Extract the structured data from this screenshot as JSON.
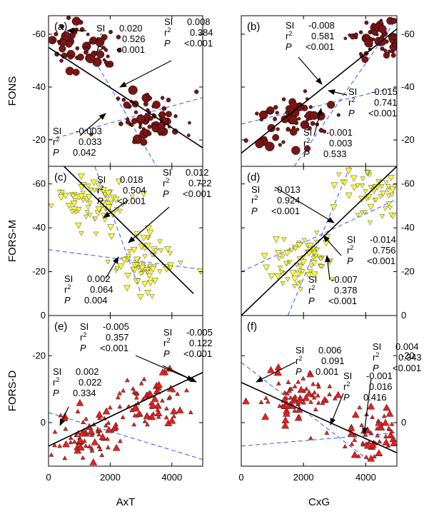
{
  "chart_data": {
    "type": "scatter",
    "layout": "3x2 panel grid",
    "x_axis_labels": [
      "AxT",
      "CxG"
    ],
    "row_labels": [
      "FONS",
      "FORS-M",
      "FORS-D"
    ],
    "xlim": [
      0,
      5000
    ],
    "x_ticks": [
      0,
      2000,
      4000
    ],
    "panels": [
      {
        "letter": "(a)",
        "col": 0,
        "row": 0,
        "ylim": [
          -10,
          -67
        ],
        "y_ticks": [
          -20,
          -40,
          -60
        ],
        "y_tick_side": "left",
        "marker": "circle",
        "color": "#7a1515",
        "cluster_centers": [
          [
            1100,
            -56
          ],
          [
            3300,
            -28
          ]
        ],
        "solid_line": {
          "x": [
            0,
            5000
          ],
          "y": [
            -55,
            -17
          ]
        },
        "dashed_lines": [
          {
            "x": [
              0,
              5000
            ],
            "y": [
              -20,
              -36
            ]
          },
          {
            "x": [
              1500,
              3500
            ],
            "y": [
              -50,
              -10
            ]
          }
        ],
        "stats": [
          {
            "si": "0.020",
            "r2": "0.526",
            "p": "<0.001"
          },
          {
            "si": "0.008",
            "r2": "0.384",
            "p": "<0.001"
          },
          {
            "si": "-0.003",
            "r2": "0.033",
            "p": "0.042"
          }
        ]
      },
      {
        "letter": "(b)",
        "col": 1,
        "row": 0,
        "ylim": [
          -10,
          -67
        ],
        "y_ticks": [
          -20,
          -40,
          -60
        ],
        "y_tick_side": "right",
        "marker": "circle",
        "color": "#7a1515",
        "cluster_centers": [
          [
            1600,
            -28
          ],
          [
            4500,
            -58
          ]
        ],
        "solid_line": {
          "x": [
            0,
            5000
          ],
          "y": [
            -15,
            -62
          ]
        },
        "dashed_lines": [
          {
            "x": [
              0,
              5000
            ],
            "y": [
              -26,
              -40
            ]
          },
          {
            "x": [
              1700,
              5000
            ],
            "y": [
              -10,
              -66
            ]
          }
        ],
        "stats": [
          {
            "si": "-0.008",
            "r2": "0.581",
            "p": "<0.001"
          },
          {
            "si": "-0.015",
            "r2": "0.741",
            "p": "<0.001"
          },
          {
            "si": "-0.001",
            "r2": "0.003",
            "p": "0.533"
          }
        ]
      },
      {
        "letter": "(c)",
        "col": 0,
        "row": 1,
        "ylim": [
          0,
          -68
        ],
        "y_ticks": [
          0,
          -20,
          -40,
          -60
        ],
        "y_tick_side": "left",
        "marker": "triangle-down",
        "color": "#ffff33",
        "cluster_centers": [
          [
            1400,
            -52
          ],
          [
            3200,
            -25
          ]
        ],
        "solid_line": {
          "x": [
            500,
            4700
          ],
          "y": [
            -68,
            -10
          ]
        },
        "dashed_lines": [
          {
            "x": [
              0,
              5000
            ],
            "y": [
              -30,
              -21
            ]
          },
          {
            "x": [
              1500,
              3000
            ],
            "y": [
              -68,
              -10
            ]
          }
        ],
        "stats": [
          {
            "si": "0.018",
            "r2": "0.504",
            "p": "<0.001"
          },
          {
            "si": "0.012",
            "r2": "0.722",
            "p": "<0.001"
          },
          {
            "si": "0.002",
            "r2": "0.064",
            "p": "0.004"
          }
        ]
      },
      {
        "letter": "(d)",
        "col": 1,
        "row": 1,
        "ylim": [
          0,
          -68
        ],
        "y_ticks": [
          0,
          -20,
          -40,
          -60
        ],
        "y_tick_side": "right",
        "marker": "triangle-down",
        "color": "#ffff33",
        "cluster_centers": [
          [
            1900,
            -25
          ],
          [
            4500,
            -57
          ]
        ],
        "solid_line": {
          "x": [
            0,
            5000
          ],
          "y": [
            0,
            -68
          ]
        },
        "dashed_lines": [
          {
            "x": [
              0,
              5000
            ],
            "y": [
              -20,
              -53
            ]
          },
          {
            "x": [
              1500,
              3500
            ],
            "y": [
              0,
              -68
            ]
          }
        ],
        "stats": [
          {
            "si": "-0.013",
            "r2": "0.924",
            "p": "<0.001"
          },
          {
            "si": "-0.014",
            "r2": "0.756",
            "p": "<0.001"
          },
          {
            "si": "-0.007",
            "r2": "0.378",
            "p": "<0.001"
          }
        ]
      },
      {
        "letter": "(e)",
        "col": 0,
        "row": 2,
        "ylim": [
          13,
          -32
        ],
        "y_ticks": [
          0,
          -20
        ],
        "y_tick_side": "left",
        "marker": "triangle-up",
        "color": "#ee1c1c",
        "cluster_centers": [
          [
            1200,
            4
          ],
          [
            3300,
            -6
          ]
        ],
        "solid_line": {
          "x": [
            0,
            5000
          ],
          "y": [
            7,
            -15
          ]
        },
        "dashed_lines": [
          {
            "x": [
              0,
              5000
            ],
            "y": [
              -3,
              11
            ]
          }
        ],
        "stats": [
          {
            "si": "-0.005",
            "r2": "0.357",
            "p": "<0.001"
          },
          {
            "si": "-0.005",
            "r2": "0.122",
            "p": "<0.001"
          },
          {
            "si": "0.002",
            "r2": "0.022",
            "p": "0.334"
          }
        ]
      },
      {
        "letter": "(f)",
        "col": 1,
        "row": 2,
        "ylim": [
          13,
          -32
        ],
        "y_ticks": [
          0,
          -20
        ],
        "y_tick_side": "right",
        "marker": "triangle-up",
        "color": "#ee1c1c",
        "cluster_centers": [
          [
            1800,
            -8
          ],
          [
            4300,
            4
          ]
        ],
        "solid_line": {
          "x": [
            0,
            5000
          ],
          "y": [
            -12,
            9
          ]
        },
        "dashed_lines": [
          {
            "x": [
              0,
              5000
            ],
            "y": [
              7,
              3
            ]
          },
          {
            "x": [
              0,
              4200
            ],
            "y": [
              -18,
              12
            ]
          }
        ],
        "stats": [
          {
            "si": "0.004",
            "r2": "0.343",
            "p": "<0.001"
          },
          {
            "si": "0.006",
            "r2": "0.091",
            "p": "0.001"
          },
          {
            "si": "-0.001",
            "r2": "0.016",
            "p": "0.416"
          }
        ]
      }
    ]
  }
}
